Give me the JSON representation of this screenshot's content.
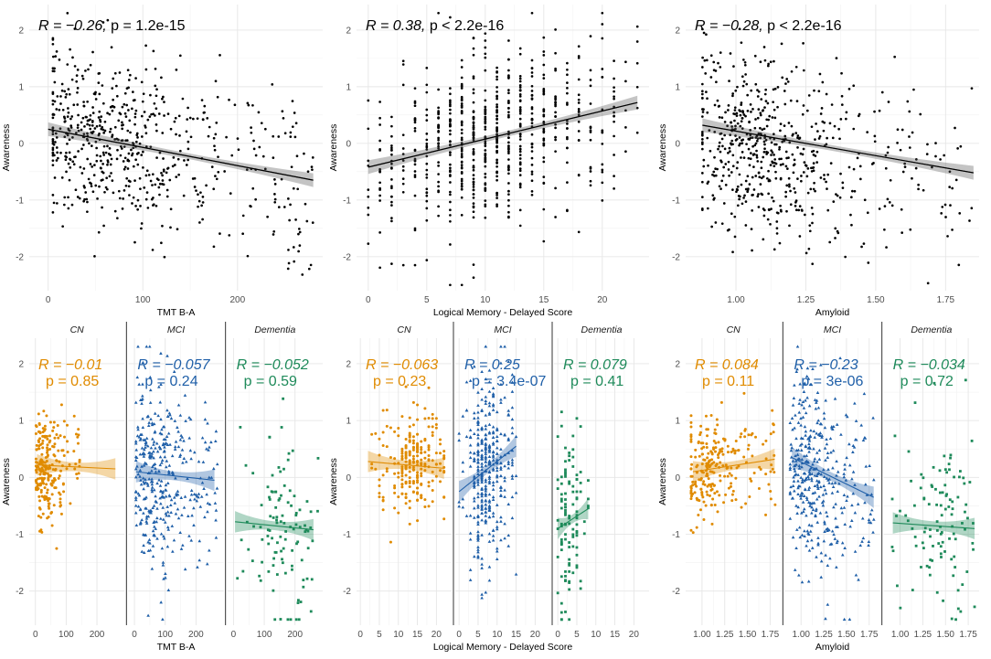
{
  "colors": {
    "CN": "#e08b00",
    "MCI": "#1f5fa8",
    "Dementia": "#1e8a5a",
    "all": "#000000"
  },
  "chart_data": [
    {
      "type": "scatter",
      "id": "top-tmt",
      "xlabel": "TMT B-A",
      "ylabel": "Awareness",
      "xlim": [
        -20,
        290
      ],
      "ylim": [
        -2.6,
        2.45
      ],
      "xticks": [
        0,
        100,
        200
      ],
      "yticks": [
        -2,
        -1,
        0,
        1,
        2
      ],
      "annotation": {
        "R": "R = −0.26,",
        "p": "p = 1.2e-15"
      },
      "fit": {
        "x0": 0,
        "y0": 0.25,
        "x1": 280,
        "y1": -0.65
      },
      "cloud": {
        "n": 620,
        "xmin": 5,
        "xmax": 280,
        "xmode": 40,
        "ymean": 0.15,
        "ysd": 0.75,
        "slope": -0.0032,
        "seed": 11
      }
    },
    {
      "type": "scatter",
      "id": "top-lm",
      "xlabel": "Logical Memory - Delayed Score",
      "ylabel": "Awareness",
      "xlim": [
        -1,
        24
      ],
      "ylim": [
        -2.6,
        2.45
      ],
      "xticks": [
        0,
        5,
        10,
        15,
        20
      ],
      "yticks": [
        -2,
        -1,
        0,
        1,
        2
      ],
      "annotation": {
        "R": "R = 0.38,",
        "p": "p < 2.2e-16"
      },
      "fit": {
        "x0": 0,
        "y0": -0.42,
        "x1": 23,
        "y1": 0.72
      },
      "cloud": {
        "n": 700,
        "xmin": 0,
        "xmax": 23,
        "xmode": 9,
        "ymean": 0.0,
        "ysd": 0.8,
        "slope": 0.05,
        "seed": 23,
        "discrete": true
      }
    },
    {
      "type": "scatter",
      "id": "top-amyloid",
      "xlabel": "Amyloid",
      "ylabel": "Awareness",
      "xlim": [
        0.82,
        1.87
      ],
      "ylim": [
        -2.6,
        2.45
      ],
      "xticks": [
        1.0,
        1.25,
        1.5,
        1.75
      ],
      "xticklabels": [
        "1.00",
        "1.25",
        "1.50",
        "1.75"
      ],
      "yticks": [
        -2,
        -1,
        0,
        1,
        2
      ],
      "annotation": {
        "R": "R = −0.28,",
        "p": "p < 2.2e-16"
      },
      "fit": {
        "x0": 0.88,
        "y0": 0.32,
        "x1": 1.85,
        "y1": -0.52
      },
      "cloud": {
        "n": 620,
        "xmin": 0.88,
        "xmax": 1.85,
        "xmode": 1.02,
        "ymean": 0.05,
        "ysd": 0.8,
        "slope": -0.85,
        "seed": 37
      }
    },
    {
      "type": "scatter",
      "id": "bottom-tmt-facets",
      "xlabel": "TMT B-A",
      "ylabel": "Awareness",
      "xlim": [
        -20,
        290
      ],
      "ylim": [
        -2.6,
        2.45
      ],
      "xticks": [
        0,
        100,
        200
      ],
      "yticks": [
        -2,
        -1,
        0,
        1,
        2
      ],
      "facets": [
        {
          "label": "CN",
          "group": "CN",
          "R": "R = −0.01",
          "p": "p = 0.85",
          "fit": {
            "x0": 5,
            "y0": 0.22,
            "x1": 260,
            "y1": 0.15
          },
          "cloud": {
            "n": 240,
            "xmin": 2,
            "xmax": 150,
            "xmode": 25,
            "ymean": 0.2,
            "ysd": 0.45,
            "slope": 0,
            "seed": 5
          }
        },
        {
          "label": "MCI",
          "group": "MCI",
          "R": "R = −0.057",
          "p": "p = 0.24",
          "fit": {
            "x0": 5,
            "y0": 0.1,
            "x1": 260,
            "y1": -0.05
          },
          "cloud": {
            "n": 380,
            "xmin": 5,
            "xmax": 270,
            "xmode": 45,
            "ymean": 0.05,
            "ysd": 0.85,
            "slope": -0.0006,
            "seed": 9
          }
        },
        {
          "label": "Dementia",
          "group": "Dementia",
          "R": "R = −0.052",
          "p": "p = 0.59",
          "fit": {
            "x0": 5,
            "y0": -0.78,
            "x1": 260,
            "y1": -0.92
          },
          "cloud": {
            "n": 110,
            "xmin": 10,
            "xmax": 275,
            "xmode": 150,
            "ymean": -0.85,
            "ysd": 0.85,
            "slope": -0.0005,
            "seed": 14
          }
        }
      ]
    },
    {
      "type": "scatter",
      "id": "bottom-lm-facets",
      "xlabel": "Logical Memory - Delayed Score",
      "ylabel": "Awareness",
      "xlim": [
        -1,
        24
      ],
      "ylim": [
        -2.6,
        2.45
      ],
      "xticks": [
        0,
        5,
        10,
        15,
        20
      ],
      "yticks": [
        -2,
        -1,
        0,
        1,
        2
      ],
      "facets": [
        {
          "label": "CN",
          "group": "CN",
          "R": "R = −0.063",
          "p": "p = 0.23",
          "fit": {
            "x0": 2,
            "y0": 0.28,
            "x1": 22,
            "y1": 0.16
          },
          "cloud": {
            "n": 240,
            "xmin": 3,
            "xmax": 22,
            "xmode": 13,
            "ymean": 0.22,
            "ysd": 0.45,
            "slope": 0,
            "seed": 3,
            "discrete": true
          }
        },
        {
          "label": "MCI",
          "group": "MCI",
          "R": "R = 0.25",
          "p": "p = 3.4e-07",
          "fit": {
            "x0": 0,
            "y0": -0.25,
            "x1": 15,
            "y1": 0.55
          },
          "cloud": {
            "n": 380,
            "xmin": 0,
            "xmax": 15,
            "xmode": 6,
            "ymean": 0.05,
            "ysd": 0.85,
            "slope": 0.05,
            "seed": 17,
            "discrete": true
          }
        },
        {
          "label": "Dementia",
          "group": "Dementia",
          "R": "R = 0.079",
          "p": "p = 0.41",
          "fit": {
            "x0": 0,
            "y0": -0.9,
            "x1": 8,
            "y1": -0.55
          },
          "cloud": {
            "n": 110,
            "xmin": 0,
            "xmax": 8,
            "xmode": 2,
            "ymean": -0.85,
            "ysd": 0.85,
            "slope": 0.04,
            "seed": 29,
            "discrete": true
          }
        }
      ]
    },
    {
      "type": "scatter",
      "id": "bottom-amyloid-facets",
      "xlabel": "Amyloid",
      "ylabel": "Awareness",
      "xlim": [
        0.82,
        1.87
      ],
      "ylim": [
        -2.6,
        2.45
      ],
      "xticks": [
        1.0,
        1.25,
        1.5,
        1.75
      ],
      "xticklabels": [
        "1.00",
        "1.25",
        "1.50",
        "1.75"
      ],
      "yticks": [
        -2,
        -1,
        0,
        1,
        2
      ],
      "facets": [
        {
          "label": "CN",
          "group": "CN",
          "R": "R = 0.084",
          "p": "p = 0.11",
          "fit": {
            "x0": 0.9,
            "y0": 0.1,
            "x1": 1.8,
            "y1": 0.32
          },
          "cloud": {
            "n": 240,
            "xmin": 0.88,
            "xmax": 1.82,
            "xmode": 1.0,
            "ymean": 0.18,
            "ysd": 0.45,
            "slope": 0.2,
            "seed": 41
          }
        },
        {
          "label": "MCI",
          "group": "MCI",
          "R": "R = −0.23",
          "p": "p = 3e-06",
          "fit": {
            "x0": 0.9,
            "y0": 0.35,
            "x1": 1.8,
            "y1": -0.35
          },
          "cloud": {
            "n": 380,
            "xmin": 0.88,
            "xmax": 1.82,
            "xmode": 1.05,
            "ymean": 0.05,
            "ysd": 0.85,
            "slope": -0.75,
            "seed": 43
          }
        },
        {
          "label": "Dementia",
          "group": "Dementia",
          "R": "R = −0.034",
          "p": "p = 0.72",
          "fit": {
            "x0": 0.92,
            "y0": -0.8,
            "x1": 1.82,
            "y1": -0.9
          },
          "cloud": {
            "n": 110,
            "xmin": 0.9,
            "xmax": 1.82,
            "xmode": 1.5,
            "ymean": -0.85,
            "ysd": 0.85,
            "slope": -0.1,
            "seed": 47
          }
        }
      ]
    }
  ]
}
